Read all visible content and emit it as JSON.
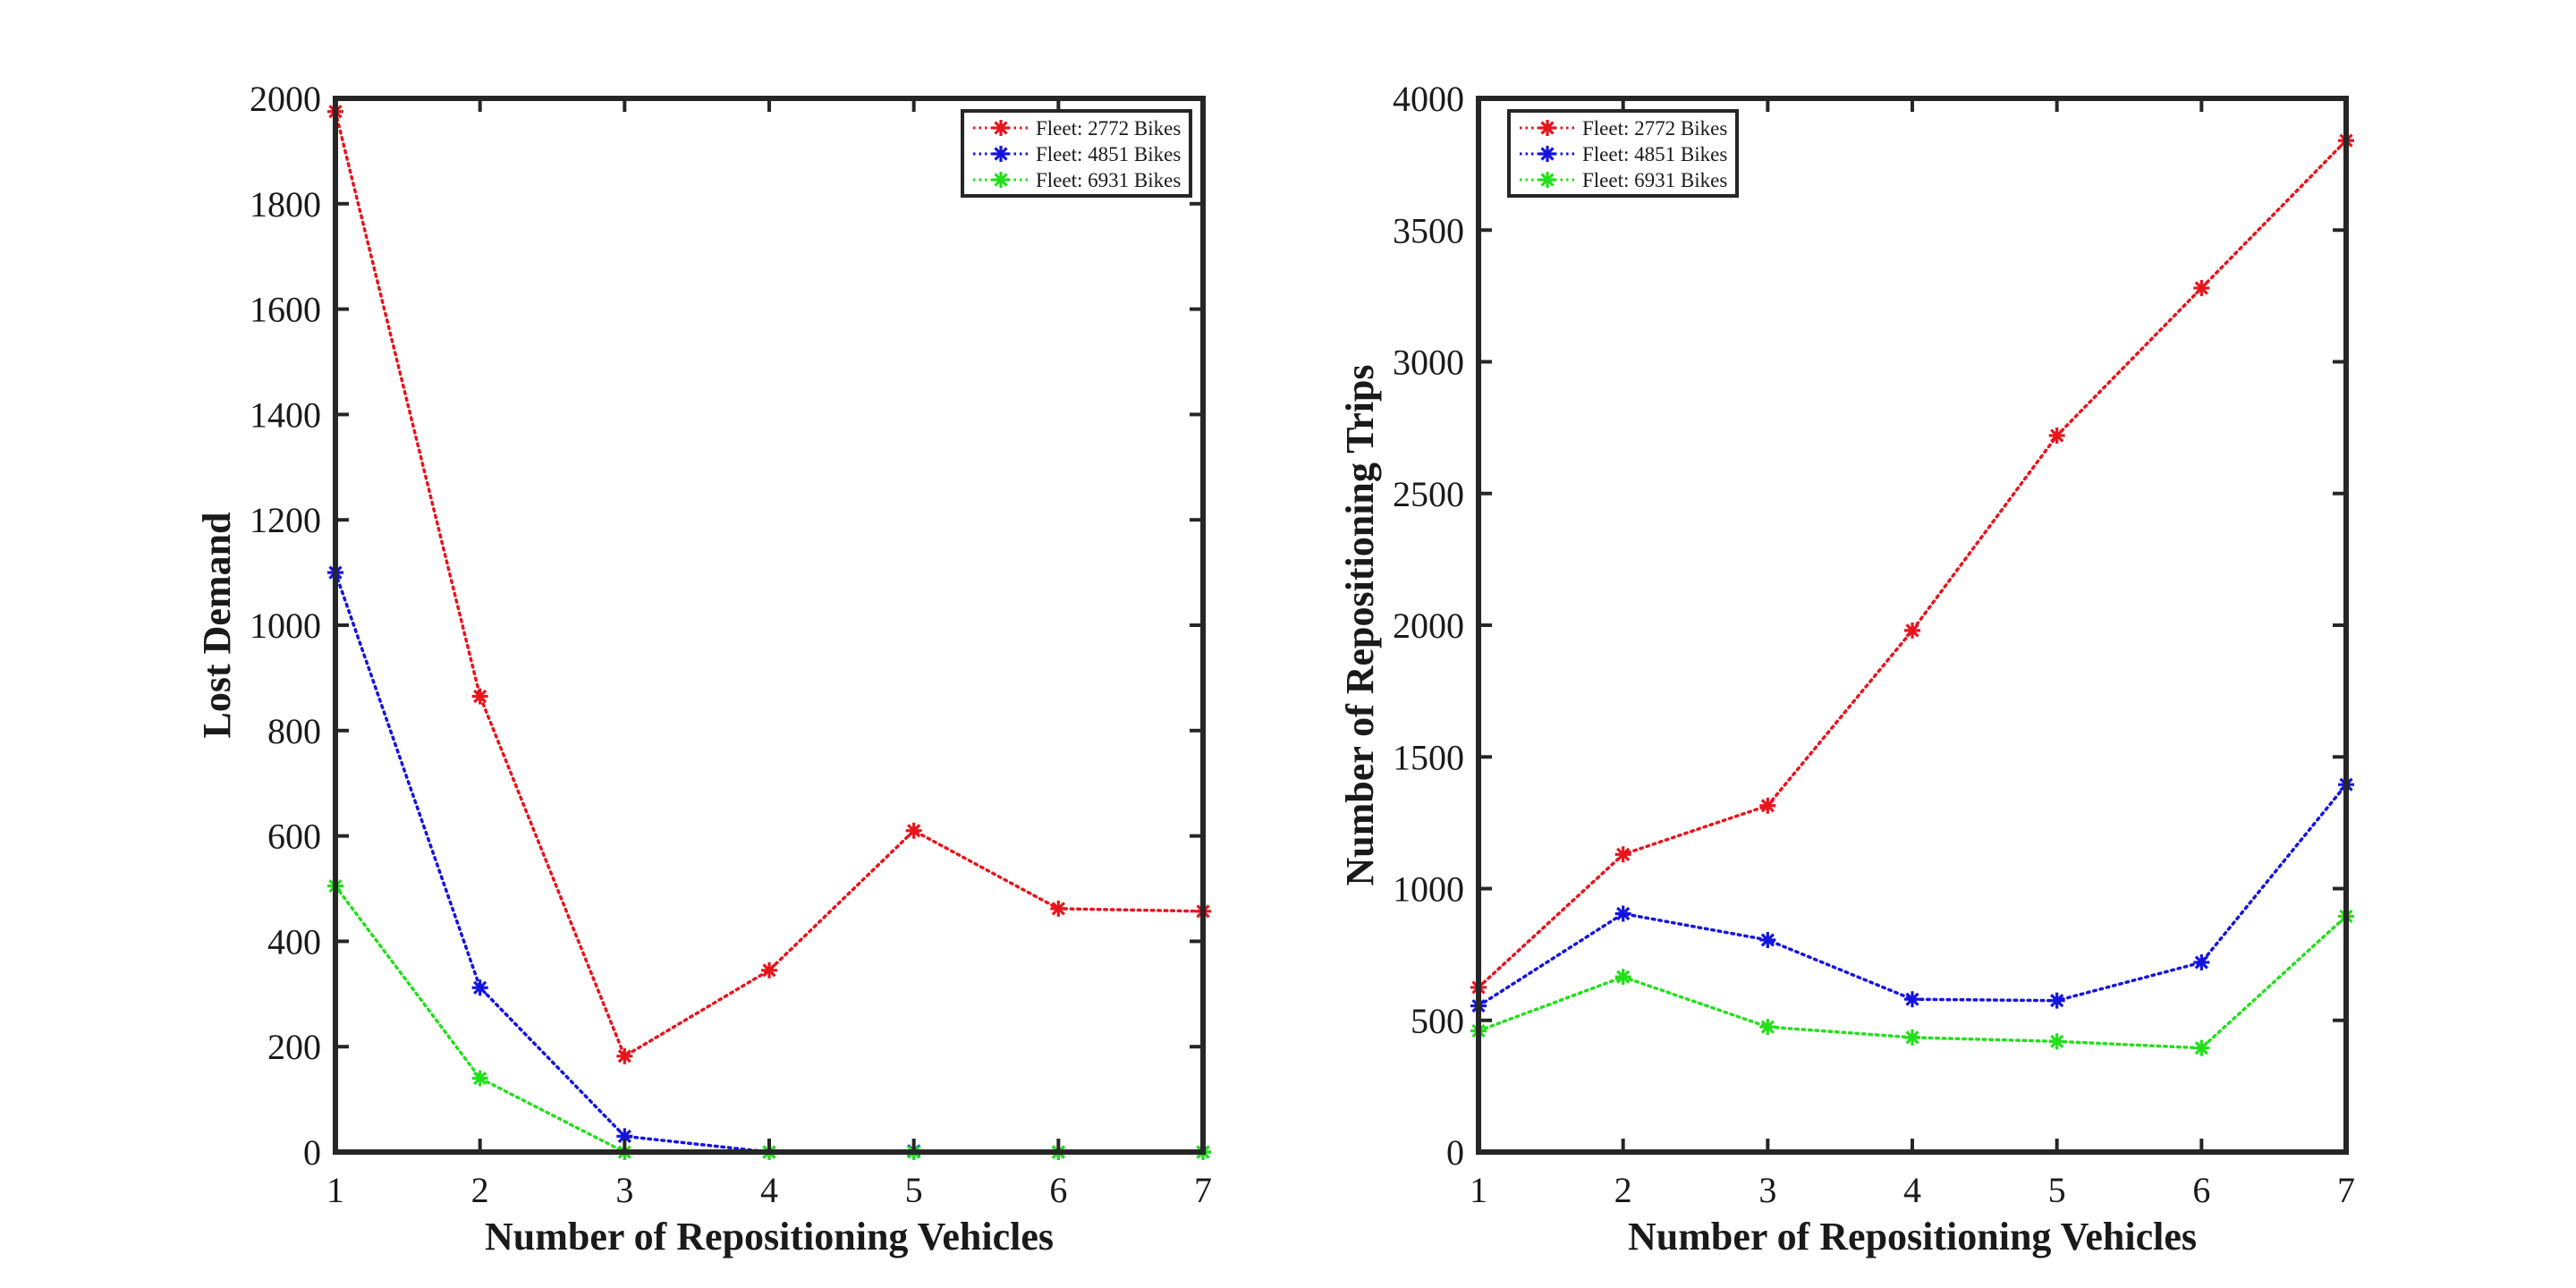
{
  "chart_data": [
    {
      "type": "line",
      "xlabel": "Number of Repositioning Vehicles",
      "ylabel": "Lost Demand",
      "x": [
        1,
        2,
        3,
        4,
        5,
        6,
        7
      ],
      "xlim": [
        1,
        7
      ],
      "ylim": [
        0,
        2000
      ],
      "xticks": [
        "1",
        "2",
        "3",
        "4",
        "5",
        "6",
        "7"
      ],
      "yticks": [
        "0",
        "200",
        "400",
        "600",
        "800",
        "1000",
        "1200",
        "1400",
        "1600",
        "1800",
        "2000"
      ],
      "grid": false,
      "legend_position": "top-right",
      "series": [
        {
          "name": "Fleet: 2772 Bikes",
          "color": "#e8141c",
          "marker": "asterisk",
          "line": "dotted",
          "values": [
            1975,
            865,
            182,
            345,
            610,
            462,
            457
          ]
        },
        {
          "name": "Fleet: 4851 Bikes",
          "color": "#1414e0",
          "marker": "asterisk",
          "line": "dotted",
          "values": [
            1100,
            312,
            30,
            0,
            2,
            0,
            0
          ]
        },
        {
          "name": "Fleet: 6931 Bikes",
          "color": "#22e01a",
          "marker": "asterisk",
          "line": "dotted",
          "values": [
            505,
            140,
            0,
            0,
            0,
            0,
            0
          ]
        }
      ]
    },
    {
      "type": "line",
      "xlabel": "Number of Repositioning Vehicles",
      "ylabel": "Number of Repositioning Trips",
      "x": [
        1,
        2,
        3,
        4,
        5,
        6,
        7
      ],
      "xlim": [
        1,
        7
      ],
      "ylim": [
        0,
        4000
      ],
      "xticks": [
        "1",
        "2",
        "3",
        "4",
        "5",
        "6",
        "7"
      ],
      "yticks": [
        "0",
        "500",
        "1000",
        "1500",
        "2000",
        "2500",
        "3000",
        "3500",
        "4000"
      ],
      "grid": false,
      "legend_position": "top-left",
      "series": [
        {
          "name": "Fleet: 2772 Bikes",
          "color": "#e8141c",
          "marker": "asterisk",
          "line": "dotted",
          "values": [
            625,
            1130,
            1315,
            1980,
            2720,
            3280,
            3840
          ]
        },
        {
          "name": "Fleet: 4851 Bikes",
          "color": "#1414e0",
          "marker": "asterisk",
          "line": "dotted",
          "values": [
            555,
            905,
            805,
            580,
            575,
            720,
            1395
          ]
        },
        {
          "name": "Fleet: 6931 Bikes",
          "color": "#22e01a",
          "marker": "asterisk",
          "line": "dotted",
          "values": [
            460,
            665,
            475,
            435,
            420,
            395,
            895
          ]
        }
      ]
    }
  ]
}
